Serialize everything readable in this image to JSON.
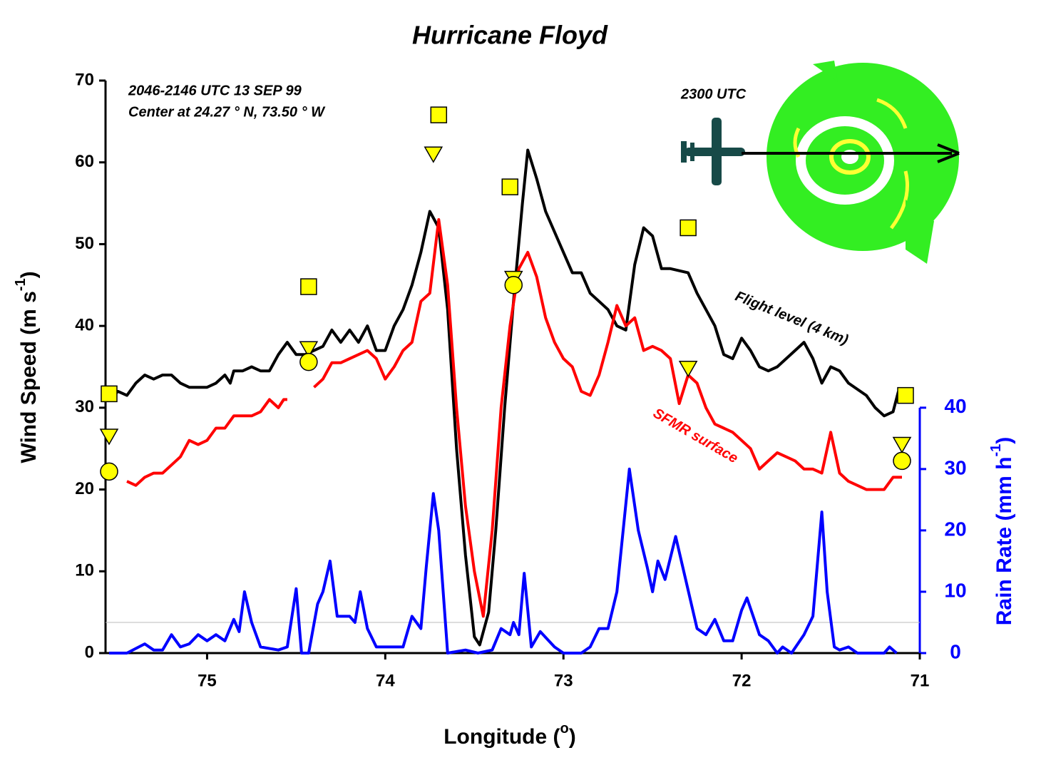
{
  "chart_data": {
    "type": "line",
    "title": "Hurricane Floyd",
    "xlabel": [
      "Longitude (",
      "o",
      ")"
    ],
    "ylabel": [
      "Wind Speed (m s",
      "-1",
      ")"
    ],
    "y2label": [
      "Rain Rate (mm h",
      "-1",
      ")"
    ],
    "annotations": [
      "2046-2146 UTC 13 SEP 99",
      "Center at 24.27 ° N, 73.50 ° W",
      "2300 UTC"
    ],
    "xlim": [
      75.57,
      71
    ],
    "xticks": [
      75,
      74,
      73,
      72,
      71
    ],
    "ylim": [
      0,
      70
    ],
    "yticks": [
      0,
      10,
      20,
      30,
      40,
      50,
      60,
      70
    ],
    "y2lim": [
      0,
      93.33
    ],
    "y2ticks": [
      0,
      10,
      20,
      30,
      40
    ],
    "hline": {
      "value": 5,
      "axis": "y2",
      "color": "#bbbbbb"
    },
    "series": [
      {
        "name": "Flight level (4 km)",
        "color": "#000000",
        "x": [
          75.55,
          75.5,
          75.45,
          75.4,
          75.35,
          75.3,
          75.25,
          75.2,
          75.15,
          75.1,
          75.0,
          74.95,
          74.9,
          74.87,
          74.85,
          74.8,
          74.75,
          74.7,
          74.65,
          74.6,
          74.55,
          74.5,
          74.45,
          74.4,
          74.35,
          74.3,
          74.25,
          74.2,
          74.15,
          74.1,
          74.05,
          74.0,
          73.95,
          73.9,
          73.85,
          73.8,
          73.75,
          73.7,
          73.65,
          73.6,
          73.55,
          73.5,
          73.47,
          73.42,
          73.38,
          73.33,
          73.28,
          73.23,
          73.2,
          73.15,
          73.1,
          73.0,
          72.95,
          72.9,
          72.85,
          72.8,
          72.75,
          72.7,
          72.65,
          72.6,
          72.55,
          72.5,
          72.45,
          72.4,
          72.3,
          72.25,
          72.2,
          72.15,
          72.1,
          72.05,
          72.0,
          71.95,
          71.9,
          71.85,
          71.8,
          71.7,
          71.65,
          71.6,
          71.55,
          71.5,
          71.45,
          71.4,
          71.3,
          71.25,
          71.2,
          71.15,
          71.12
        ],
        "values": [
          31,
          32,
          31.5,
          33,
          34,
          33.5,
          34,
          34,
          33,
          32.5,
          32.5,
          33,
          34,
          33,
          34.5,
          34.5,
          35,
          34.5,
          34.5,
          36.5,
          38,
          36.5,
          36.5,
          37,
          37.5,
          39.5,
          38,
          39.5,
          38,
          40,
          37,
          37,
          40,
          42,
          45,
          49,
          54,
          52,
          42,
          25,
          12,
          2,
          1,
          5,
          15,
          30,
          43,
          55,
          61.5,
          58,
          54,
          49,
          46.5,
          46.5,
          44,
          43,
          42,
          40,
          39.5,
          47.5,
          52,
          51,
          47,
          47,
          46.5,
          44,
          42,
          40,
          36.5,
          36,
          38.5,
          37,
          35,
          34.5,
          35,
          37,
          38,
          36,
          33,
          35,
          34.5,
          33,
          31.5,
          30,
          29,
          29.5,
          32
        ]
      },
      {
        "name": "SFMR surface",
        "color": "#ff0000",
        "x": [
          75.45,
          75.4,
          75.35,
          75.3,
          75.25,
          75.2,
          75.15,
          75.1,
          75.05,
          75.0,
          74.95,
          74.9,
          74.85,
          74.8,
          74.75,
          74.7,
          74.65,
          74.6,
          74.57,
          74.55,
          74.47,
          74.4,
          74.35,
          74.3,
          74.25,
          74.2,
          74.15,
          74.1,
          74.05,
          74.0,
          73.95,
          73.9,
          73.85,
          73.8,
          73.75,
          73.7,
          73.65,
          73.6,
          73.55,
          73.5,
          73.45,
          73.4,
          73.35,
          73.3,
          73.25,
          73.2,
          73.15,
          73.1,
          73.05,
          73.0,
          72.95,
          72.9,
          72.85,
          72.8,
          72.75,
          72.7,
          72.65,
          72.6,
          72.55,
          72.5,
          72.45,
          72.4,
          72.35,
          72.3,
          72.25,
          72.2,
          72.15,
          72.1,
          72.05,
          72.0,
          71.95,
          71.9,
          71.85,
          71.8,
          71.75,
          71.7,
          71.65,
          71.6,
          71.55,
          71.5,
          71.45,
          71.4,
          71.3,
          71.25,
          71.2,
          71.15,
          71.1
        ],
        "values": [
          21,
          20.5,
          21.5,
          22,
          22,
          23,
          24,
          26,
          25.5,
          26,
          27.5,
          27.5,
          29,
          29,
          29,
          29.5,
          31,
          30,
          31,
          31,
          null,
          32.5,
          33.5,
          35.5,
          35.5,
          36,
          36.5,
          37,
          36,
          33.5,
          35,
          37,
          38,
          43,
          44,
          53,
          45,
          30,
          18,
          10,
          4.5,
          15,
          30,
          40,
          47,
          49,
          46,
          41,
          38,
          36,
          35,
          32,
          31.5,
          34,
          38,
          42.5,
          40,
          41,
          37,
          37.5,
          37,
          36,
          30.5,
          34,
          33,
          30,
          28,
          27.5,
          27,
          26,
          25,
          22.5,
          23.5,
          24.5,
          24,
          23.5,
          22.5,
          22.5,
          22,
          27,
          22,
          21,
          20,
          20,
          20,
          21.5,
          21.5
        ]
      },
      {
        "color": "#0000ff",
        "axis": "y2",
        "x": [
          75.55,
          75.45,
          75.35,
          75.3,
          75.25,
          75.2,
          75.15,
          75.1,
          75.05,
          75.0,
          74.95,
          74.9,
          74.85,
          74.82,
          74.79,
          74.75,
          74.7,
          74.6,
          74.55,
          74.5,
          74.47,
          74.43,
          74.38,
          74.35,
          74.31,
          74.27,
          74.2,
          74.17,
          74.14,
          74.1,
          74.05,
          73.95,
          73.9,
          73.85,
          73.8,
          73.77,
          73.73,
          73.7,
          73.65,
          73.55,
          73.48,
          73.4,
          73.35,
          73.3,
          73.28,
          73.25,
          73.22,
          73.18,
          73.13,
          73.05,
          73.0,
          72.9,
          72.85,
          72.8,
          72.75,
          72.7,
          72.63,
          72.58,
          72.53,
          72.5,
          72.47,
          72.43,
          72.37,
          72.33,
          72.25,
          72.2,
          72.15,
          72.1,
          72.05,
          72.0,
          71.97,
          71.9,
          71.85,
          71.8,
          71.77,
          71.72,
          71.65,
          71.6,
          71.55,
          71.52,
          71.48,
          71.45,
          71.4,
          71.35,
          71.2,
          71.17,
          71.13
        ],
        "values": [
          0,
          0,
          1.5,
          0.5,
          0.5,
          3,
          1,
          1.5,
          3,
          2,
          3,
          2,
          5.5,
          3.5,
          10,
          5,
          1,
          0.5,
          1,
          10.5,
          0,
          0,
          8,
          10,
          15,
          6,
          6,
          5,
          10,
          4,
          1,
          1,
          1,
          6,
          4,
          14,
          26,
          20,
          0,
          0.5,
          0,
          0.5,
          4,
          3,
          5,
          3,
          13,
          1,
          3.5,
          1,
          0,
          0,
          1,
          4,
          4,
          10,
          30,
          20,
          14,
          10,
          15,
          12,
          19,
          14,
          4,
          3,
          5.5,
          2,
          2,
          7,
          9,
          3,
          2,
          0,
          1,
          0,
          3,
          6,
          23,
          10,
          1,
          0.5,
          1,
          0,
          0,
          1,
          0
        ]
      },
      {
        "type": "scatter",
        "marker": "square",
        "color": "#ffff00",
        "x": [
          75.55,
          74.43,
          73.7,
          73.3,
          72.3,
          71.08
        ],
        "values": [
          31.7,
          44.8,
          65.8,
          57,
          52,
          31.5
        ]
      },
      {
        "type": "scatter",
        "marker": "triangle",
        "color": "#ffff00",
        "x": [
          75.55,
          74.43,
          73.73,
          73.28,
          72.3,
          71.1
        ],
        "values": [
          26.5,
          37.2,
          61,
          45.8,
          34.8,
          25.5
        ]
      },
      {
        "type": "scatter",
        "marker": "circle",
        "color": "#ffff00",
        "x": [
          75.55,
          74.43,
          73.28,
          71.1
        ],
        "values": [
          22.2,
          35.6,
          45,
          23.5
        ]
      }
    ]
  }
}
